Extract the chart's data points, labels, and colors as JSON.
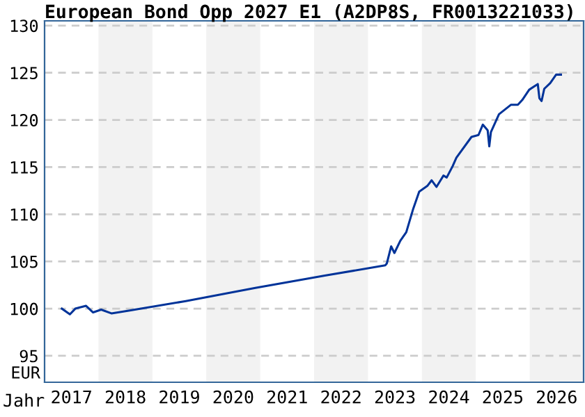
{
  "chart_data": {
    "type": "line",
    "title": "European Bond Opp 2027 E1 (A2DP8S, FR0013221033)",
    "xlabel": "Jahr",
    "ylabel": "EUR",
    "series": [
      {
        "color": "#003399",
        "x": [
          2017.32,
          2017.47,
          2017.57,
          2017.77,
          2017.9,
          2018.05,
          2018.24,
          2018.58,
          2019.62,
          2020.91,
          2022.2,
          2023.32,
          2023.35,
          2023.43,
          2023.49,
          2023.6,
          2023.71,
          2023.84,
          2023.95,
          2024.1,
          2024.18,
          2024.27,
          2024.4,
          2024.46,
          2024.57,
          2024.64,
          2024.92,
          2025.05,
          2025.13,
          2025.22,
          2025.25,
          2025.28,
          2025.43,
          2025.65,
          2025.78,
          2025.86,
          2025.99,
          2026.15,
          2026.18,
          2026.22,
          2026.27,
          2026.38,
          2026.49,
          2026.58
        ],
        "values": [
          100.0,
          99.4,
          100.0,
          100.3,
          99.6,
          99.9,
          99.5,
          99.8,
          100.8,
          102.2,
          103.5,
          104.6,
          104.8,
          106.6,
          105.9,
          107.2,
          108.1,
          110.6,
          112.4,
          113.0,
          113.6,
          112.9,
          114.1,
          113.9,
          115.1,
          116.0,
          118.2,
          118.4,
          119.5,
          118.9,
          117.2,
          118.7,
          120.6,
          121.6,
          121.6,
          122.1,
          123.2,
          123.8,
          122.3,
          122.0,
          123.3,
          123.9,
          124.8,
          124.8
        ]
      }
    ],
    "xlim": [
      2017,
      2027
    ],
    "ylim": [
      92.2,
      130.5
    ],
    "xticks": [
      {
        "value": 2017.5,
        "label": "2017"
      },
      {
        "value": 2018.5,
        "label": "2018"
      },
      {
        "value": 2019.5,
        "label": "2019"
      },
      {
        "value": 2020.5,
        "label": "2020"
      },
      {
        "value": 2021.5,
        "label": "2021"
      },
      {
        "value": 2022.5,
        "label": "2022"
      },
      {
        "value": 2023.5,
        "label": "2023"
      },
      {
        "value": 2024.5,
        "label": "2024"
      },
      {
        "value": 2025.5,
        "label": "2025"
      },
      {
        "value": 2026.5,
        "label": "2026"
      }
    ],
    "yticks": [
      95,
      100,
      105,
      110,
      115,
      120,
      125,
      130
    ],
    "bands": [
      {
        "axis": "x",
        "from": 2018,
        "to": 2019,
        "color": "#f2f2f2"
      },
      {
        "axis": "x",
        "from": 2020,
        "to": 2021,
        "color": "#f2f2f2"
      },
      {
        "axis": "x",
        "from": 2022,
        "to": 2023,
        "color": "#f2f2f2"
      },
      {
        "axis": "x",
        "from": 2024,
        "to": 2025,
        "color": "#f2f2f2"
      },
      {
        "axis": "x",
        "from": 2026,
        "to": 2027,
        "color": "#f2f2f2"
      }
    ],
    "grid": "y",
    "marker": "none",
    "line_style": "solid"
  }
}
